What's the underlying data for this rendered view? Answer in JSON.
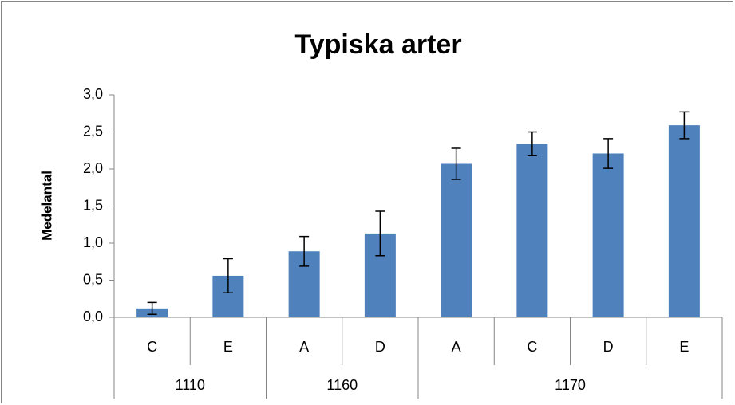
{
  "chart_data": {
    "type": "bar",
    "title": "Typiska arter",
    "y_label": "Medelantal",
    "groups": [
      {
        "name": "1110",
        "categories": [
          "C",
          "E"
        ]
      },
      {
        "name": "1160",
        "categories": [
          "A",
          "D"
        ]
      },
      {
        "name": "1170",
        "categories": [
          "A",
          "C",
          "D",
          "E"
        ]
      }
    ],
    "values": [
      0.12,
      0.56,
      0.89,
      1.13,
      2.07,
      2.34,
      2.21,
      2.59
    ],
    "errors": [
      0.08,
      0.23,
      0.2,
      0.3,
      0.21,
      0.16,
      0.2,
      0.18
    ],
    "color": "#4f81bd",
    "ylim": [
      0,
      3
    ],
    "yticks": [
      {
        "value": 0,
        "label": "0,0"
      },
      {
        "value": 0.5,
        "label": "0,5"
      },
      {
        "value": 1,
        "label": "1,0"
      },
      {
        "value": 1.5,
        "label": "1,5"
      },
      {
        "value": 2,
        "label": "2,0"
      },
      {
        "value": 2.5,
        "label": "2,5"
      },
      {
        "value": 3,
        "label": "3,0"
      }
    ],
    "grid": false
  }
}
